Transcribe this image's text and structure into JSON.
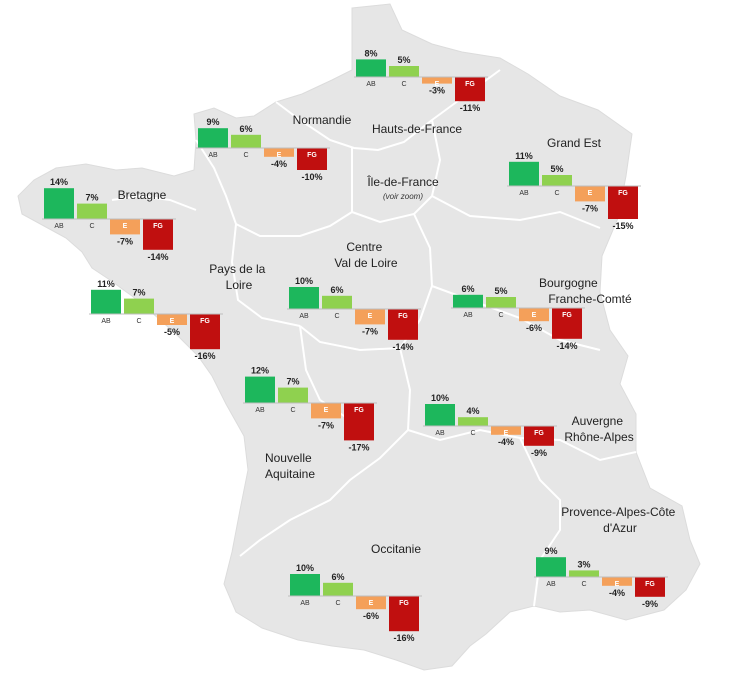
{
  "colors": {
    "AB": "#1db75c",
    "C": "#8fd14f",
    "E": "#f4a05a",
    "FG": "#c00f0f",
    "land": "#e6e6e6",
    "border": "#ffffff"
  },
  "chart_data": {
    "type": "bar",
    "categories": [
      "AB",
      "C",
      "E",
      "FG"
    ],
    "regions": [
      {
        "name": "Hauts-de-France",
        "values": [
          8,
          5,
          -3,
          -11
        ]
      },
      {
        "name": "Normandie",
        "values": [
          9,
          6,
          -4,
          -10
        ]
      },
      {
        "name": "Bretagne",
        "values": [
          14,
          7,
          -7,
          -14
        ]
      },
      {
        "name": "Grand Est",
        "values": [
          11,
          5,
          -7,
          -15
        ]
      },
      {
        "name": "Île-de-France",
        "note": "(voir zoom)",
        "values": []
      },
      {
        "name": "Pays de la Loire",
        "values": [
          11,
          7,
          -5,
          -16
        ]
      },
      {
        "name": "Centre Val de Loire",
        "values": [
          10,
          6,
          -7,
          -14
        ]
      },
      {
        "name": "Bourgogne Franche-Comté",
        "values": [
          6,
          5,
          -6,
          -14
        ]
      },
      {
        "name": "Nouvelle Aquitaine",
        "values": [
          12,
          7,
          -7,
          -17
        ]
      },
      {
        "name": "Auvergne Rhône-Alpes",
        "values": [
          10,
          4,
          -4,
          -9
        ]
      },
      {
        "name": "Occitanie",
        "values": [
          10,
          6,
          -6,
          -16
        ]
      },
      {
        "name": "Provence-Alpes-Côte d'Azur",
        "values": [
          9,
          3,
          -4,
          -9
        ]
      }
    ]
  }
}
